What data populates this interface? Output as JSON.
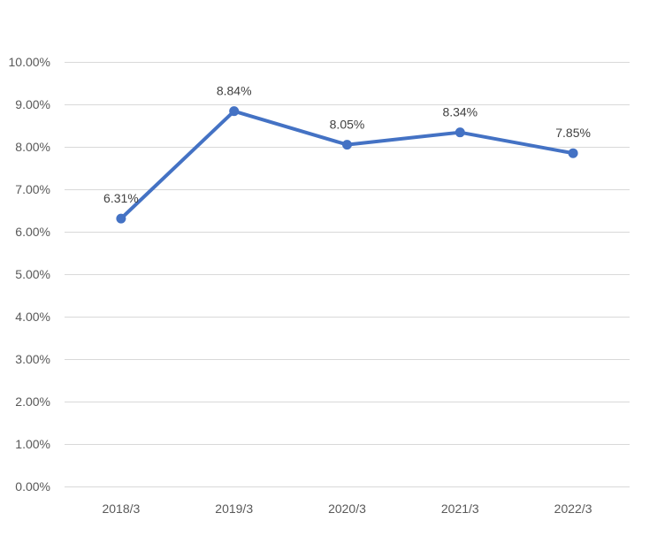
{
  "chart_data": {
    "type": "line",
    "title": "",
    "xlabel": "",
    "ylabel": "",
    "categories": [
      "2018/3",
      "2019/3",
      "2020/3",
      "2021/3",
      "2022/3"
    ],
    "series": [
      {
        "values": [
          6.31,
          8.84,
          8.05,
          8.34,
          7.85
        ],
        "data_labels": [
          "6.31%",
          "8.84%",
          "8.05%",
          "8.34%",
          "7.85%"
        ]
      }
    ],
    "ylim": [
      0,
      10
    ],
    "y_ticks": [
      0,
      1,
      2,
      3,
      4,
      5,
      6,
      7,
      8,
      9,
      10
    ],
    "y_tick_labels": [
      "0.00%",
      "1.00%",
      "2.00%",
      "3.00%",
      "4.00%",
      "5.00%",
      "6.00%",
      "7.00%",
      "8.00%",
      "9.00%",
      "10.00%"
    ],
    "grid": true,
    "legend": "none",
    "colors": {
      "line": "#4472c4",
      "grid": "#d9d9d9",
      "text": "#595959",
      "label": "#404040"
    }
  }
}
